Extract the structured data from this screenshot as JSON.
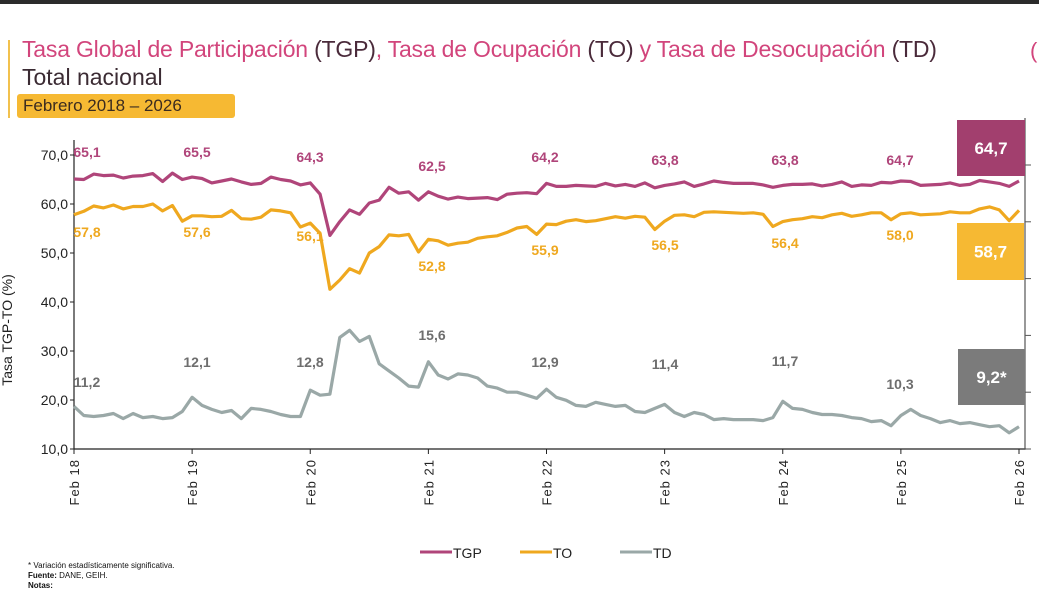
{
  "header": {
    "title_parts": [
      {
        "text": "Tasa Global de Participación ",
        "style": "pink"
      },
      {
        "text": "(TGP)",
        "style": "dark"
      },
      {
        "text": ", Tasa de Ocupación ",
        "style": "pink"
      },
      {
        "text": "(TO)",
        "style": "dark"
      },
      {
        "text": " y Tasa de Desocupación ",
        "style": "pink"
      },
      {
        "text": "(TD)",
        "style": "dark"
      }
    ],
    "subtitle": "Total nacional",
    "period": "Febrero 2018 – 2026",
    "edge_glyph": "("
  },
  "footer": {
    "note": "* Variación estadísticamente significativa.",
    "source_label": "Fuente:",
    "source": " DANE, GEIH.",
    "notes_label": "Notas:"
  },
  "colors": {
    "tgp": "#b0457a",
    "to": "#efa81f",
    "td": "#9aa8a7",
    "tgp_box": "#a23f6e",
    "to_box": "#f6b933",
    "td_box": "#7b7b7b",
    "td_label": "#6e6e6e"
  },
  "chart_data": {
    "type": "line",
    "title": "Tasa Global de Participación (TGP), Tasa de Ocupación (TO) y Tasa de Desocupación (TD)",
    "ylabel": "Tasa TGP-TO (%)",
    "ylim": [
      10,
      70
    ],
    "y_ticks": [
      "70,0",
      "60,0",
      "50,0",
      "40,0",
      "30,0",
      "20,0",
      "10,0"
    ],
    "y2lim": [
      7,
      35
    ],
    "x_start": "Feb 2018",
    "x_end": "Feb 2026",
    "frequency": "monthly",
    "x_ticks": [
      "Feb 18",
      "Feb 19",
      "Feb 20",
      "Feb 21",
      "Feb 22",
      "Feb 23",
      "Feb 24",
      "Feb 25",
      "Feb 26"
    ],
    "legend": "bottom",
    "grid": false,
    "series": [
      {
        "name": "TGP",
        "axis": "left",
        "values": [
          65.1,
          65.0,
          66.1,
          65.8,
          65.9,
          65.3,
          65.7,
          65.8,
          66.2,
          64.6,
          66.3,
          65.0,
          65.5,
          65.2,
          64.3,
          64.7,
          65.1,
          64.5,
          64.0,
          64.2,
          65.5,
          65.0,
          64.7,
          63.9,
          64.3,
          62.0,
          53.6,
          56.4,
          58.8,
          57.9,
          60.2,
          60.8,
          63.4,
          62.2,
          62.5,
          60.8,
          62.5,
          61.6,
          61.0,
          61.4,
          61.1,
          61.2,
          61.3,
          60.9,
          62.0,
          62.2,
          62.3,
          62.1,
          64.2,
          63.6,
          63.6,
          63.8,
          63.7,
          63.6,
          64.2,
          63.7,
          64.0,
          63.6,
          64.3,
          63.3,
          63.8,
          64.1,
          64.5,
          63.6,
          64.1,
          64.7,
          64.4,
          64.2,
          64.2,
          64.2,
          63.9,
          63.4,
          63.8,
          64.0,
          64.0,
          64.1,
          63.7,
          64.0,
          64.5,
          63.6,
          63.9,
          63.8,
          64.4,
          64.3,
          64.7,
          64.6,
          63.8,
          63.9,
          64.0,
          64.3,
          63.8,
          64.0,
          64.8,
          64.5,
          64.2,
          63.6,
          64.7
        ],
        "labels": [
          {
            "year": "Feb 18",
            "text": "65,1"
          },
          {
            "year": "Feb 19",
            "text": "65,5"
          },
          {
            "year": "Feb 20",
            "text": "64,3"
          },
          {
            "year": "Feb 21",
            "text": "62,5"
          },
          {
            "year": "Feb 22",
            "text": "64,2"
          },
          {
            "year": "Feb 23",
            "text": "63,8"
          },
          {
            "year": "Feb 24",
            "text": "63,8"
          },
          {
            "year": "Feb 25",
            "text": "64,7"
          }
        ],
        "last_value": "64,7"
      },
      {
        "name": "TO",
        "axis": "left",
        "values": [
          57.8,
          58.5,
          59.6,
          59.2,
          59.8,
          59.0,
          59.5,
          59.5,
          60.0,
          58.6,
          59.7,
          56.5,
          57.6,
          57.6,
          57.4,
          57.5,
          58.7,
          57.0,
          56.9,
          57.3,
          58.8,
          58.6,
          58.2,
          55.3,
          56.1,
          54.0,
          42.6,
          44.5,
          46.8,
          45.9,
          50.0,
          51.3,
          53.7,
          53.5,
          53.8,
          50.2,
          52.8,
          52.5,
          51.6,
          52.0,
          52.2,
          53.0,
          53.3,
          53.5,
          54.2,
          55.1,
          55.4,
          53.8,
          55.9,
          55.8,
          56.5,
          56.8,
          56.4,
          56.6,
          57.0,
          57.4,
          57.1,
          57.5,
          57.3,
          54.8,
          56.5,
          57.7,
          57.8,
          57.4,
          58.3,
          58.4,
          58.3,
          58.2,
          58.1,
          58.2,
          57.9,
          55.4,
          56.4,
          56.8,
          57.0,
          57.4,
          57.2,
          57.8,
          58.1,
          57.5,
          57.8,
          58.2,
          58.2,
          56.8,
          58.0,
          58.2,
          57.8,
          57.9,
          58.0,
          58.4,
          58.2,
          58.2,
          59.0,
          59.4,
          58.8,
          56.6,
          58.7
        ],
        "labels": [
          {
            "year": "Feb 18",
            "text": "57,8"
          },
          {
            "year": "Feb 19",
            "text": "57,6"
          },
          {
            "year": "Feb 20",
            "text": "56,1"
          },
          {
            "year": "Feb 21",
            "text": "52,8"
          },
          {
            "year": "Feb 22",
            "text": "55,9"
          },
          {
            "year": "Feb 23",
            "text": "56,5"
          },
          {
            "year": "Feb 24",
            "text": "56,4"
          },
          {
            "year": "Feb 25",
            "text": "58,0"
          }
        ],
        "last_value": "58,7"
      },
      {
        "name": "TD",
        "axis": "right",
        "values": [
          11.2,
          10.3,
          10.2,
          10.3,
          10.5,
          10.0,
          10.5,
          10.1,
          10.2,
          10.0,
          10.1,
          10.7,
          12.1,
          11.3,
          10.9,
          10.6,
          10.8,
          10.0,
          11.0,
          10.9,
          10.7,
          10.4,
          10.2,
          10.2,
          12.8,
          12.3,
          12.4,
          18.0,
          18.7,
          17.6,
          18.1,
          15.4,
          14.7,
          14.0,
          13.2,
          13.1,
          15.6,
          14.3,
          13.9,
          14.4,
          14.3,
          14.0,
          13.2,
          13.0,
          12.6,
          12.6,
          12.3,
          12.0,
          12.9,
          12.1,
          11.8,
          11.3,
          11.2,
          11.6,
          11.4,
          11.2,
          11.3,
          10.7,
          10.6,
          11.0,
          11.4,
          10.6,
          10.2,
          10.6,
          10.4,
          9.9,
          10.0,
          9.9,
          9.9,
          9.9,
          9.8,
          10.1,
          11.7,
          11.0,
          10.9,
          10.6,
          10.4,
          10.4,
          10.3,
          10.1,
          10.0,
          9.7,
          9.8,
          9.3,
          10.3,
          10.9,
          10.3,
          10.0,
          9.6,
          9.8,
          9.5,
          9.6,
          9.4,
          9.2,
          9.3,
          8.6,
          9.2
        ],
        "labels": [
          {
            "year": "Feb 18",
            "text": "11,2"
          },
          {
            "year": "Feb 19",
            "text": "12,1"
          },
          {
            "year": "Feb 20",
            "text": "12,8"
          },
          {
            "year": "Feb 21",
            "text": "15,6"
          },
          {
            "year": "Feb 22",
            "text": "12,9"
          },
          {
            "year": "Feb 23",
            "text": "11,4"
          },
          {
            "year": "Feb 24",
            "text": "11,7"
          },
          {
            "year": "Feb 25",
            "text": "10,3"
          }
        ],
        "last_value": "9,2*"
      }
    ]
  }
}
